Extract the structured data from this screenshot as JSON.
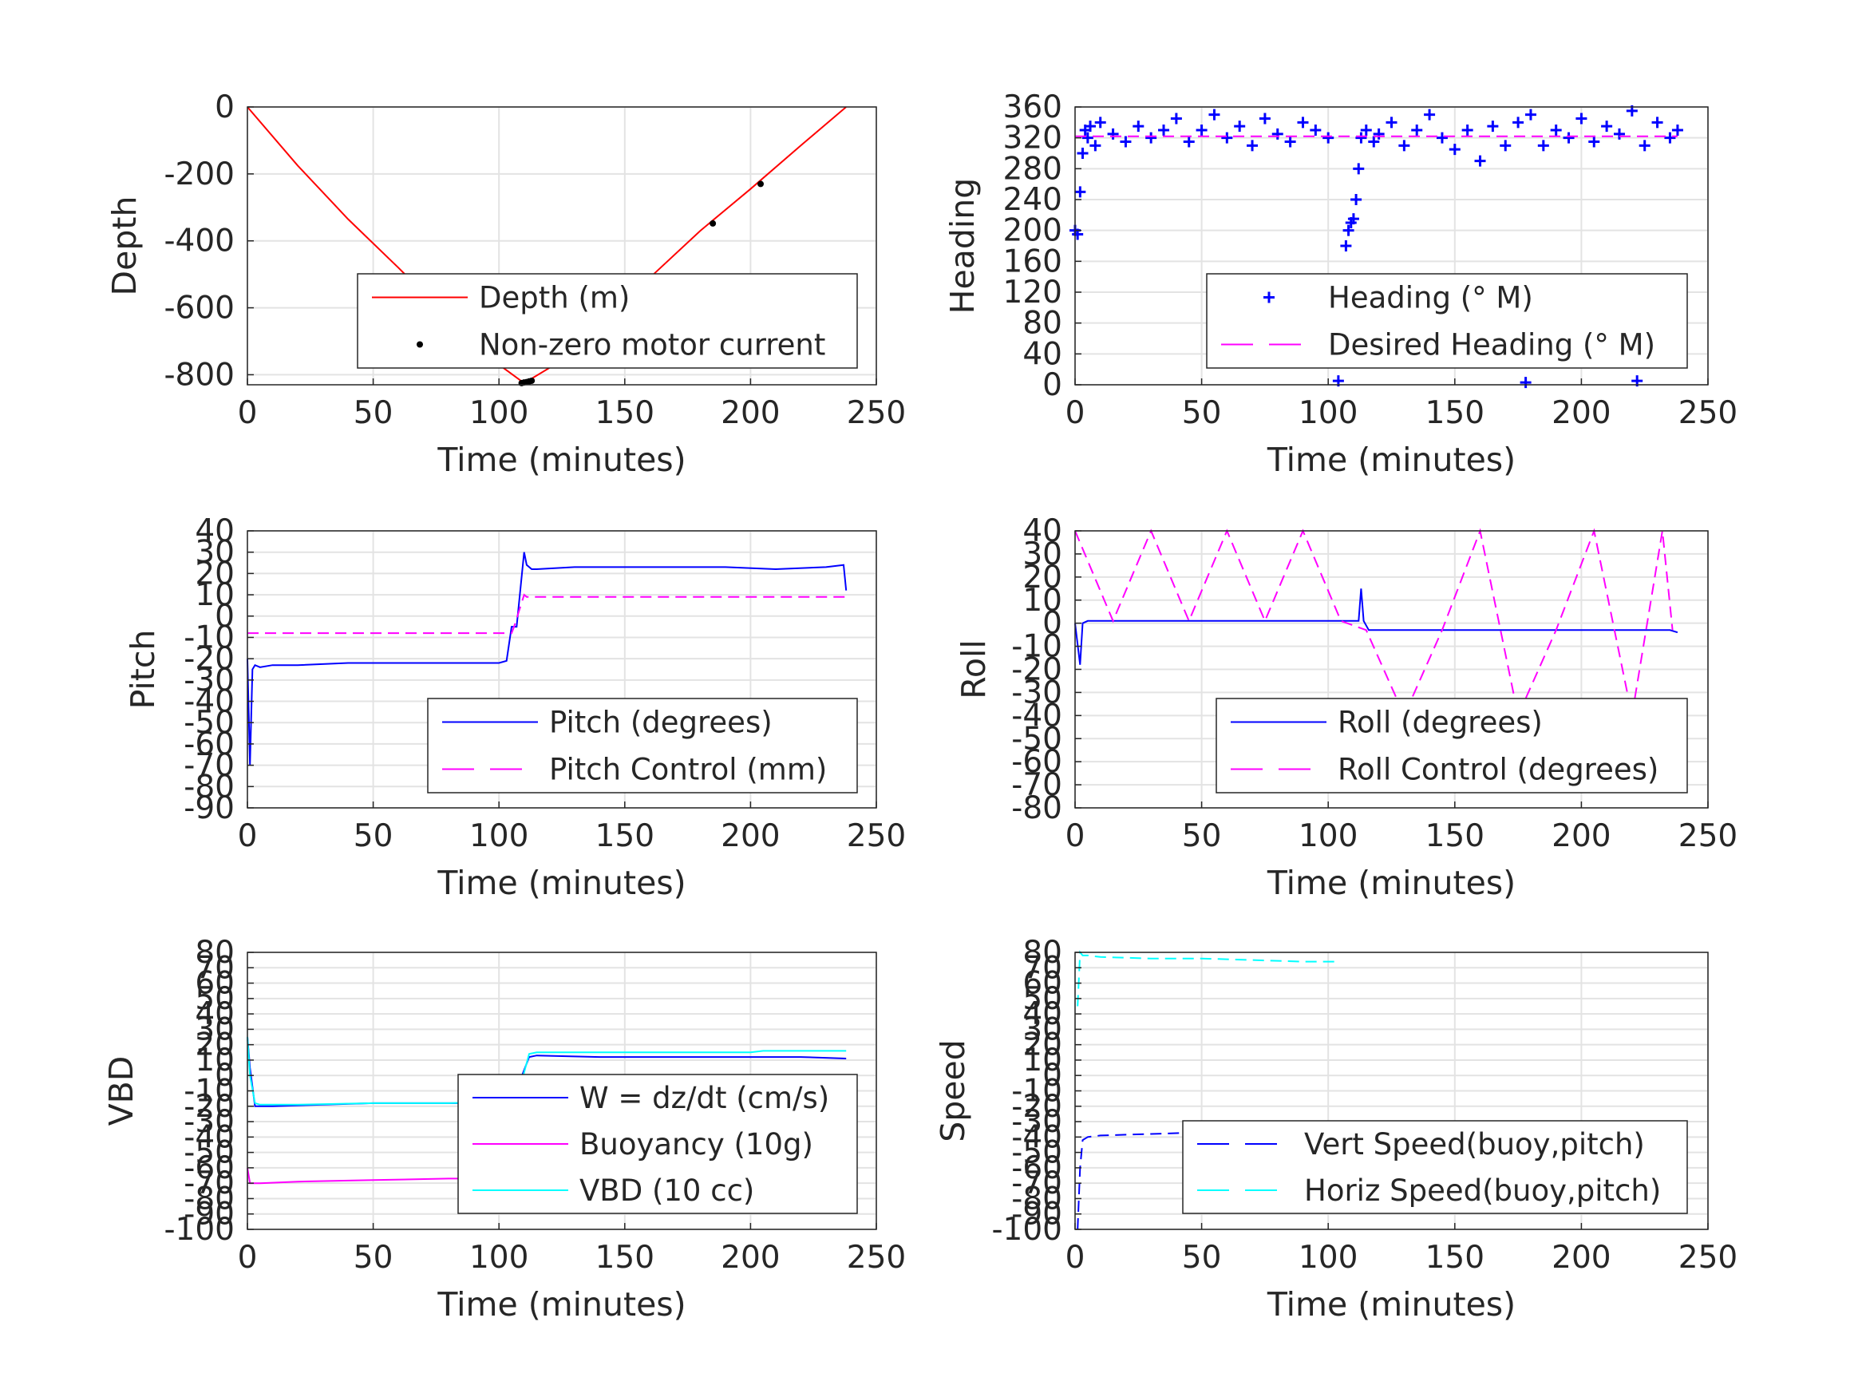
{
  "chart_data": [
    {
      "id": "depth",
      "type": "line",
      "xlabel": "Time (minutes)",
      "ylabel": "Depth",
      "xlim": [
        0,
        250
      ],
      "ylim": [
        -830,
        0
      ],
      "xticks": [
        0,
        50,
        100,
        150,
        200,
        250
      ],
      "yticks": [
        0,
        -200,
        -400,
        -600,
        -800
      ],
      "grid": true,
      "legend_position": "lower-right",
      "series": [
        {
          "name": "Depth (m)",
          "style": "line",
          "color": "#ff0000",
          "x": [
            0,
            20,
            40,
            60,
            80,
            100,
            110,
            120,
            140,
            160,
            180,
            200,
            220,
            238
          ],
          "y": [
            0,
            -175,
            -335,
            -480,
            -630,
            -770,
            -825,
            -780,
            -640,
            -510,
            -370,
            -245,
            -115,
            0
          ]
        },
        {
          "name": "Non-zero motor current",
          "style": "points",
          "color": "#000000",
          "x": [
            109,
            110,
            111,
            112,
            113,
            141,
            159,
            185,
            204
          ],
          "y": [
            -825,
            -823,
            -822,
            -820,
            -818,
            -628,
            -520,
            -348,
            -230
          ]
        }
      ]
    },
    {
      "id": "heading",
      "type": "scatter",
      "xlabel": "Time (minutes)",
      "ylabel": "Heading",
      "xlim": [
        0,
        250
      ],
      "ylim": [
        0,
        360
      ],
      "xticks": [
        0,
        50,
        100,
        150,
        200,
        250
      ],
      "yticks": [
        0,
        40,
        80,
        120,
        160,
        200,
        240,
        280,
        320,
        360
      ],
      "grid": true,
      "legend_position": "lower-right",
      "series": [
        {
          "name": "Heading (° M)",
          "style": "plus",
          "color": "#0000ff",
          "x": [
            0,
            1,
            2,
            3,
            4,
            5,
            6,
            8,
            10,
            15,
            20,
            25,
            30,
            35,
            40,
            45,
            50,
            55,
            60,
            65,
            70,
            75,
            80,
            85,
            90,
            95,
            100,
            104,
            105,
            106,
            107,
            108,
            109,
            110,
            111,
            112,
            113,
            115,
            118,
            120,
            125,
            130,
            135,
            140,
            145,
            150,
            155,
            160,
            165,
            170,
            175,
            178,
            180,
            185,
            190,
            195,
            200,
            205,
            210,
            215,
            220,
            222,
            225,
            230,
            235,
            238
          ],
          "y": [
            200,
            195,
            250,
            300,
            330,
            320,
            335,
            310,
            340,
            325,
            315,
            335,
            320,
            330,
            345,
            315,
            330,
            350,
            320,
            335,
            310,
            345,
            325,
            315,
            340,
            330,
            320,
            5,
            60,
            120,
            180,
            200,
            210,
            215,
            240,
            280,
            320,
            330,
            315,
            325,
            340,
            310,
            330,
            350,
            320,
            305,
            330,
            290,
            335,
            310,
            340,
            3,
            350,
            310,
            330,
            320,
            345,
            315,
            335,
            325,
            355,
            5,
            310,
            340,
            320,
            330
          ]
        },
        {
          "name": "Desired Heading (° M)",
          "style": "dashed",
          "color": "#ff00ff",
          "x": [
            0,
            238
          ],
          "y": [
            322,
            322
          ]
        }
      ]
    },
    {
      "id": "pitch",
      "type": "line",
      "xlabel": "Time (minutes)",
      "ylabel": "Pitch",
      "xlim": [
        0,
        250
      ],
      "ylim": [
        -90,
        40
      ],
      "xticks": [
        0,
        50,
        100,
        150,
        200,
        250
      ],
      "yticks": [
        40,
        30,
        20,
        10,
        0,
        -10,
        -20,
        -30,
        -40,
        -50,
        -60,
        -70,
        -80,
        -90
      ],
      "grid": true,
      "legend_position": "lower-right",
      "series": [
        {
          "name": "Pitch (degrees)",
          "style": "line",
          "color": "#0000ff",
          "x": [
            0,
            1,
            2,
            3,
            5,
            10,
            20,
            40,
            60,
            80,
            100,
            103,
            105,
            107,
            110,
            111,
            113,
            115,
            130,
            150,
            170,
            190,
            210,
            230,
            237,
            238
          ],
          "y": [
            -20,
            -70,
            -25,
            -23,
            -24,
            -23,
            -23,
            -22,
            -22,
            -22,
            -22,
            -21,
            -5,
            -5,
            30,
            24,
            22,
            22,
            23,
            23,
            23,
            23,
            22,
            23,
            24,
            12
          ]
        },
        {
          "name": "Pitch Control (mm)",
          "style": "dashed",
          "color": "#ff00ff",
          "x": [
            0,
            105,
            106,
            110,
            111,
            238
          ],
          "y": [
            -8,
            -8,
            -5,
            10,
            9,
            9
          ]
        }
      ]
    },
    {
      "id": "roll",
      "type": "line",
      "xlabel": "Time (minutes)",
      "ylabel": "Roll",
      "xlim": [
        0,
        250
      ],
      "ylim": [
        -80,
        40
      ],
      "xticks": [
        0,
        50,
        100,
        150,
        200,
        250
      ],
      "yticks": [
        40,
        30,
        20,
        10,
        0,
        -10,
        -20,
        -30,
        -40,
        -50,
        -60,
        -70,
        -80
      ],
      "grid": true,
      "legend_position": "lower-right",
      "series": [
        {
          "name": "Roll (degrees)",
          "style": "line",
          "color": "#0000ff",
          "x": [
            0,
            2,
            3,
            5,
            10,
            20,
            40,
            60,
            80,
            100,
            112,
            113,
            114,
            116,
            120,
            140,
            160,
            180,
            200,
            220,
            235,
            238
          ],
          "y": [
            0,
            -18,
            0,
            1,
            1,
            1,
            1,
            1,
            1,
            1,
            1,
            15,
            1,
            -3,
            -3,
            -3,
            -3,
            -3,
            -3,
            -3,
            -3,
            -4
          ]
        },
        {
          "name": "Roll Control (degrees)",
          "style": "dashed",
          "color": "#ff00ff",
          "x": [
            0,
            15,
            30,
            45,
            60,
            75,
            90,
            105,
            115,
            130,
            145,
            160,
            175,
            190,
            205,
            220,
            232,
            236
          ],
          "y": [
            40,
            1,
            40,
            1,
            40,
            1,
            40,
            1,
            -3,
            -40,
            -3,
            40,
            -40,
            -3,
            40,
            -40,
            40,
            -3
          ]
        }
      ]
    },
    {
      "id": "vbd",
      "type": "line",
      "xlabel": "Time (minutes)",
      "ylabel": "VBD",
      "xlim": [
        0,
        250
      ],
      "ylim": [
        -100,
        80
      ],
      "xticks": [
        0,
        50,
        100,
        150,
        200,
        250
      ],
      "yticks": [
        80,
        70,
        60,
        50,
        40,
        30,
        20,
        10,
        0,
        -10,
        -20,
        -30,
        -40,
        -50,
        -60,
        -70,
        -80,
        -90,
        -100
      ],
      "grid": true,
      "legend_position": "lower-right",
      "series": [
        {
          "name": "W = dz/dt (cm/s)",
          "style": "line",
          "color": "#0000ff",
          "x": [
            0,
            1,
            3,
            5,
            10,
            30,
            50,
            70,
            90,
            100,
            104,
            108,
            112,
            115,
            140,
            160,
            180,
            200,
            220,
            238
          ],
          "y": [
            25,
            5,
            -20,
            -20,
            -20,
            -19,
            -18,
            -18,
            -18,
            -17,
            -17,
            -5,
            12,
            13,
            12,
            12,
            12,
            12,
            12,
            11
          ]
        },
        {
          "name": "Buoyancy (10g)",
          "style": "line",
          "color": "#ff00ff",
          "x": [
            0,
            1,
            2,
            5,
            20,
            50,
            80,
            104
          ],
          "y": [
            -60,
            -70,
            -70,
            -70,
            -69,
            -68,
            -67,
            -67
          ]
        },
        {
          "name": "VBD (10 cc)",
          "style": "line",
          "color": "#00ffff",
          "x": [
            0,
            1,
            3,
            5,
            20,
            50,
            80,
            104,
            108,
            112,
            115,
            150,
            200,
            205,
            238
          ],
          "y": [
            25,
            0,
            -18,
            -19,
            -19,
            -18,
            -18,
            -17,
            -10,
            14,
            15,
            15,
            15,
            16,
            16
          ]
        }
      ]
    },
    {
      "id": "speed",
      "type": "line",
      "xlabel": "Time (minutes)",
      "ylabel": "Speed",
      "xlim": [
        0,
        250
      ],
      "ylim": [
        -100,
        80
      ],
      "xticks": [
        0,
        50,
        100,
        150,
        200,
        250
      ],
      "yticks": [
        80,
        70,
        60,
        50,
        40,
        30,
        20,
        10,
        0,
        -10,
        -20,
        -30,
        -40,
        -50,
        -60,
        -70,
        -80,
        -90,
        -100
      ],
      "grid": true,
      "legend_position": "lower-right",
      "series": [
        {
          "name": "Vert Speed(buoy,pitch)",
          "style": "dashed",
          "color": "#0000ff",
          "x": [
            1,
            2,
            3,
            5,
            10,
            30,
            50,
            70,
            90,
            104
          ],
          "y": [
            -100,
            -60,
            -42,
            -40,
            -39,
            -38,
            -37,
            -36,
            -36,
            -35
          ]
        },
        {
          "name": "Horiz Speed(buoy,pitch)",
          "style": "dashed",
          "color": "#00ffff",
          "x": [
            1,
            2,
            3,
            5,
            10,
            30,
            50,
            70,
            90,
            104
          ],
          "y": [
            45,
            80,
            78,
            78,
            77,
            76,
            76,
            75,
            74,
            74
          ]
        }
      ]
    }
  ]
}
